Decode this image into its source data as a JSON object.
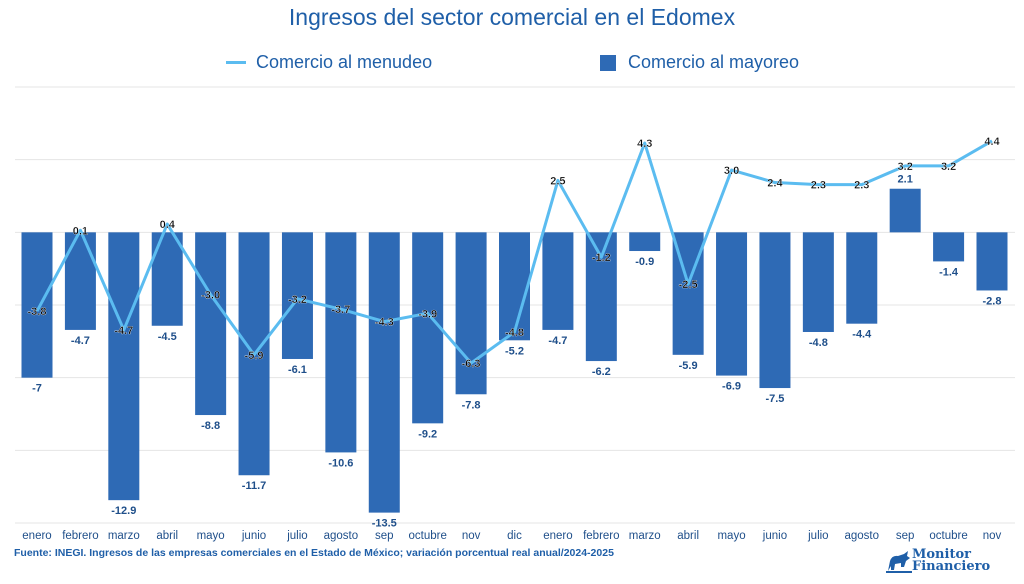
{
  "chart_data": {
    "type": "bar",
    "title": "Ingresos del sector comercial en el Edomex",
    "categories": [
      "enero",
      "febrero",
      "marzo",
      "abril",
      "mayo",
      "junio",
      "julio",
      "agosto",
      "sep",
      "octubre",
      "nov",
      "dic",
      "enero",
      "febrero",
      "marzo",
      "abril",
      "mayo",
      "junio",
      "julio",
      "agosto",
      "sep",
      "octubre",
      "nov"
    ],
    "series": [
      {
        "name": "Comercio al menudeo",
        "kind": "line",
        "color": "#5bbcf0",
        "values": [
          -3.8,
          0.1,
          -4.7,
          0.4,
          -3.0,
          -5.9,
          -3.2,
          -3.7,
          -4.3,
          -3.9,
          -6.3,
          -4.8,
          2.5,
          -1.2,
          4.3,
          -2.5,
          3.0,
          2.4,
          2.3,
          2.3,
          3.2,
          3.2,
          4.4
        ],
        "labels": [
          "-3.8",
          "0.1",
          "-4.7",
          "0.4",
          "-3.0",
          "-5.9",
          "-3.2",
          "-3.7",
          "-4.3",
          "-3.9",
          "-6.3",
          "-4.8",
          "2.5",
          "-1.2",
          "4.3",
          "-2.5",
          "3.0",
          "2.4",
          "2.3",
          "2.3",
          "3.2",
          "3.2",
          "4.4"
        ]
      },
      {
        "name": "Comercio al mayoreo",
        "kind": "bar",
        "color": "#2e6ab5",
        "values": [
          -7,
          -4.7,
          -12.9,
          -4.5,
          -8.8,
          -11.7,
          -6.1,
          -10.6,
          -13.5,
          -9.2,
          -7.8,
          -5.2,
          -4.7,
          -6.2,
          -0.9,
          -5.9,
          -6.9,
          -7.5,
          -4.8,
          -4.4,
          2.1,
          -1.4,
          -2.8
        ],
        "labels": [
          "-7",
          "-4.7",
          "-12.9",
          "-4.5",
          "-8.8",
          "-11.7",
          "-6.1",
          "-10.6",
          "-13.5",
          "-9.2",
          "-7.8",
          "-5.2",
          "-4.7",
          "-6.2",
          "-0.9",
          "-5.9",
          "-6.9",
          "-7.5",
          "-4.8",
          "-4.4",
          "2.1",
          "-1.4",
          "-2.8"
        ]
      }
    ],
    "xlabel": "",
    "ylabel": "",
    "ylim": [
      -14,
      7
    ],
    "grid": true,
    "legend": "top"
  },
  "source": "Fuente: INEGI. Ingresos de las empresas comerciales en el Estado de México; variación porcentual real anual/2024-2025",
  "logo": {
    "line1": "Monitor",
    "line2": "Financiero"
  }
}
